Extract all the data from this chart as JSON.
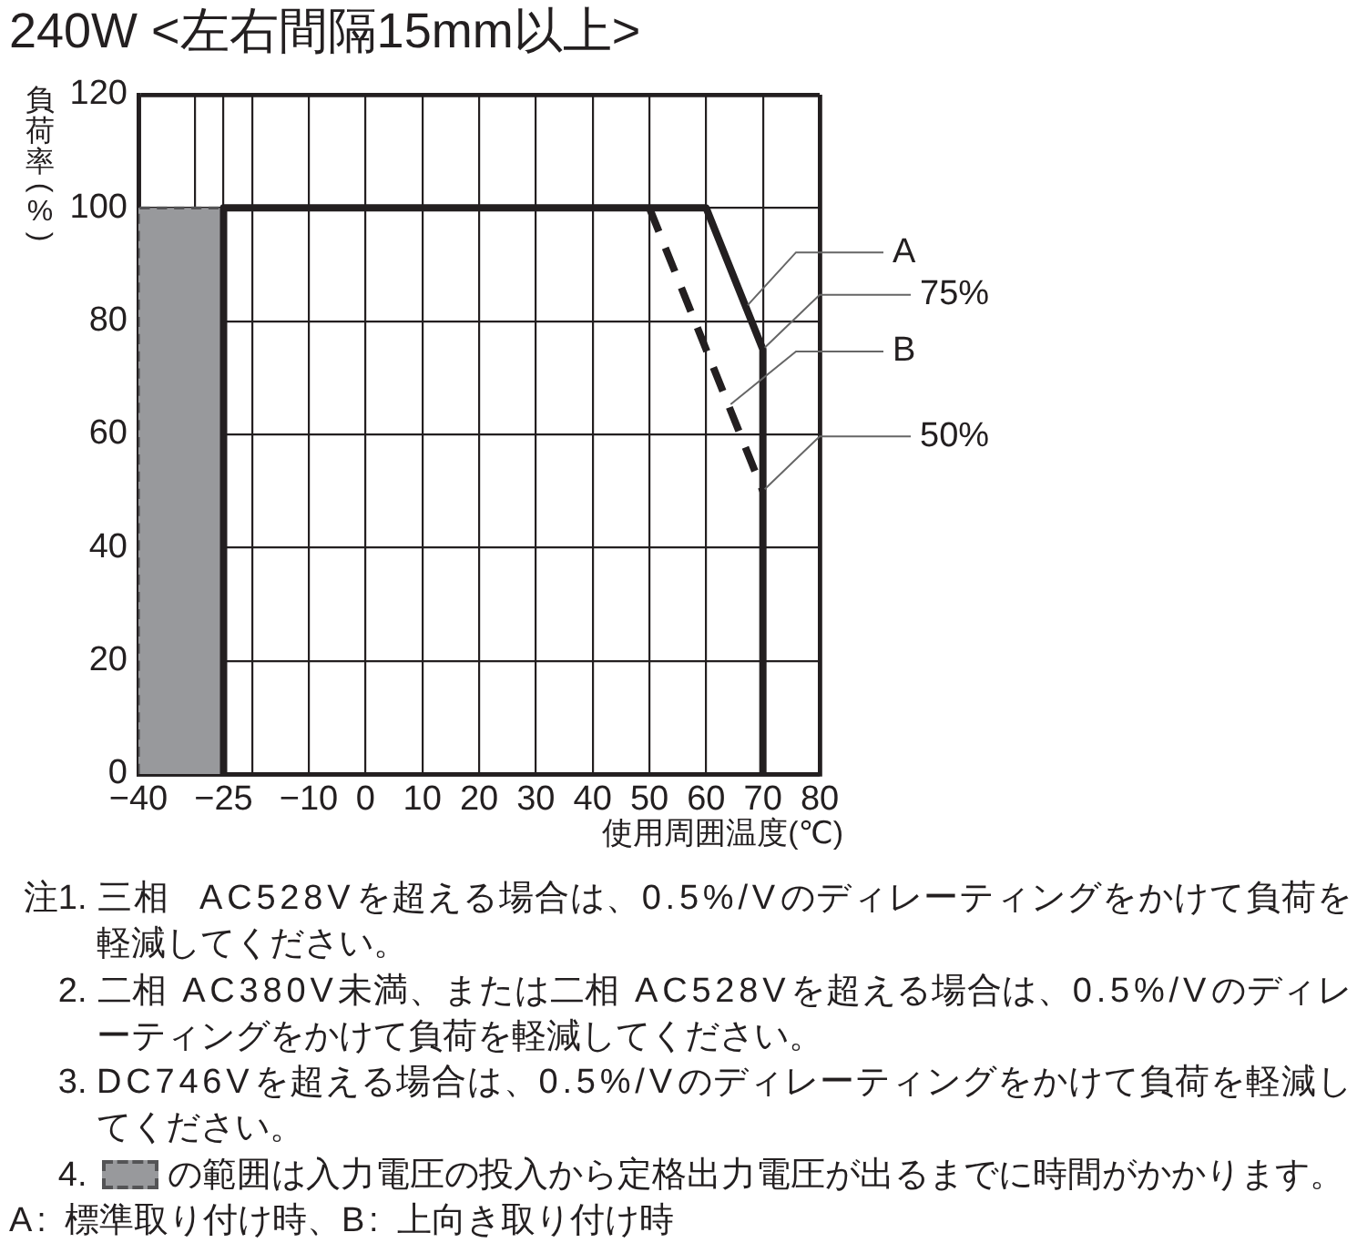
{
  "chart_data": {
    "type": "line",
    "title": "240W <左右間隔15mm以上>",
    "xlabel": "使用周囲温度(℃)",
    "ylabel": "負荷率(%)",
    "xlim": [
      -40,
      80
    ],
    "xticks": [
      {
        "value": -40,
        "label": "−40"
      },
      {
        "value": -30,
        "label": null
      },
      {
        "value": -25,
        "label": "−25"
      },
      {
        "value": -20,
        "label": null
      },
      {
        "value": -10,
        "label": "−10"
      },
      0,
      10,
      20,
      30,
      40,
      50,
      60,
      70,
      80
    ],
    "ylim": [
      0,
      120
    ],
    "yticks": [
      0,
      20,
      40,
      60,
      80,
      100,
      120
    ],
    "grid": true,
    "marker": "none",
    "series": [
      {
        "name": "A",
        "color": "#231f20",
        "line_style": "solid",
        "x": [
          -25,
          -25,
          60,
          70,
          70
        ],
        "values": [
          0,
          100,
          100,
          75,
          0
        ]
      },
      {
        "name": "B",
        "color": "#231f20",
        "line_style": "dashed",
        "x": [
          50,
          70
        ],
        "values": [
          100,
          50
        ]
      },
      {
        "type": "area",
        "color": "#98999c",
        "line_style": "dashed",
        "x": [
          -40,
          -40,
          -25,
          -25
        ],
        "values": [
          0,
          100,
          100,
          0
        ]
      }
    ],
    "annotations": [
      {
        "text": "75%",
        "x": 70,
        "y": 75
      },
      {
        "text": "50%",
        "x": 70,
        "y": 50
      },
      "注1. 三相  AC528Vを超える場合は、0.5%/Vのディレーティングをかけて負荷を軽減してください。",
      "2. 二相 AC380V未満、または二相 AC528Vを超える場合は、0.5%/Vのディレーティングをかけて負荷を軽減してください。",
      "3. DC746Vを超える場合は、0.5%/Vのディレーティングをかけて負荷を軽減してください。",
      "4. の範囲は入力電圧の投入から定格出力電圧が出るまでに時間がかかります。",
      "A: 標準取り付け時、B: 上向き取り付け時"
    ]
  }
}
